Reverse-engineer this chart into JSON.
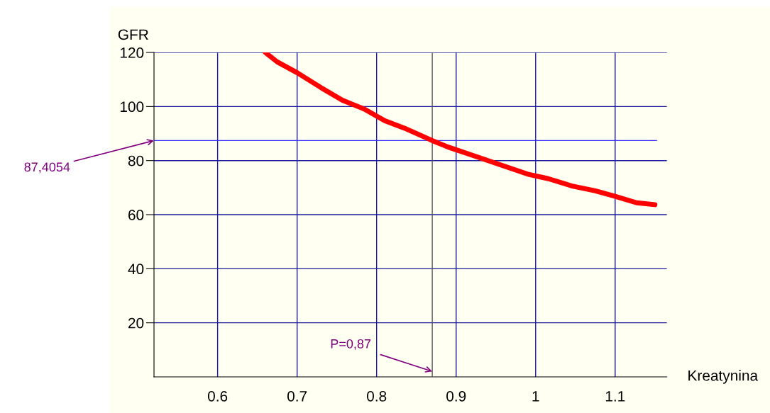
{
  "chart_data": {
    "type": "line",
    "xlabel": "Kreatynina",
    "ylabel": "GFR",
    "x": [
      0.66,
      0.675,
      0.7,
      0.73,
      0.757,
      0.785,
      0.81,
      0.835,
      0.87,
      0.89,
      0.92,
      0.95,
      0.99,
      1.016,
      1.047,
      1.075,
      1.1,
      1.127,
      1.15
    ],
    "series": [
      {
        "color": "#ff0000",
        "values": [
          120,
          116.5,
          112.5,
          107,
          102.3,
          99,
          94.8,
          92,
          87.4,
          85,
          82,
          79,
          75,
          73.3,
          70.5,
          68.8,
          66.8,
          64.4,
          63.7
        ]
      }
    ],
    "xlim": [
      0.52,
      1.165
    ],
    "ylim": [
      0,
      120
    ],
    "xticks": [
      0.6,
      0.7,
      0.8,
      0.9,
      1,
      1.1
    ],
    "yticks": [
      20,
      40,
      60,
      80,
      100,
      120
    ],
    "grid": true,
    "marker": "none",
    "line_style": "solid",
    "legend": false,
    "ref_lines": [
      {
        "axis": "y",
        "value": 87.4054,
        "label": "87,4054",
        "color": "#3333ff"
      },
      {
        "axis": "x",
        "value": 0.87,
        "label": "P=0,87",
        "color": "#555555"
      }
    ]
  }
}
